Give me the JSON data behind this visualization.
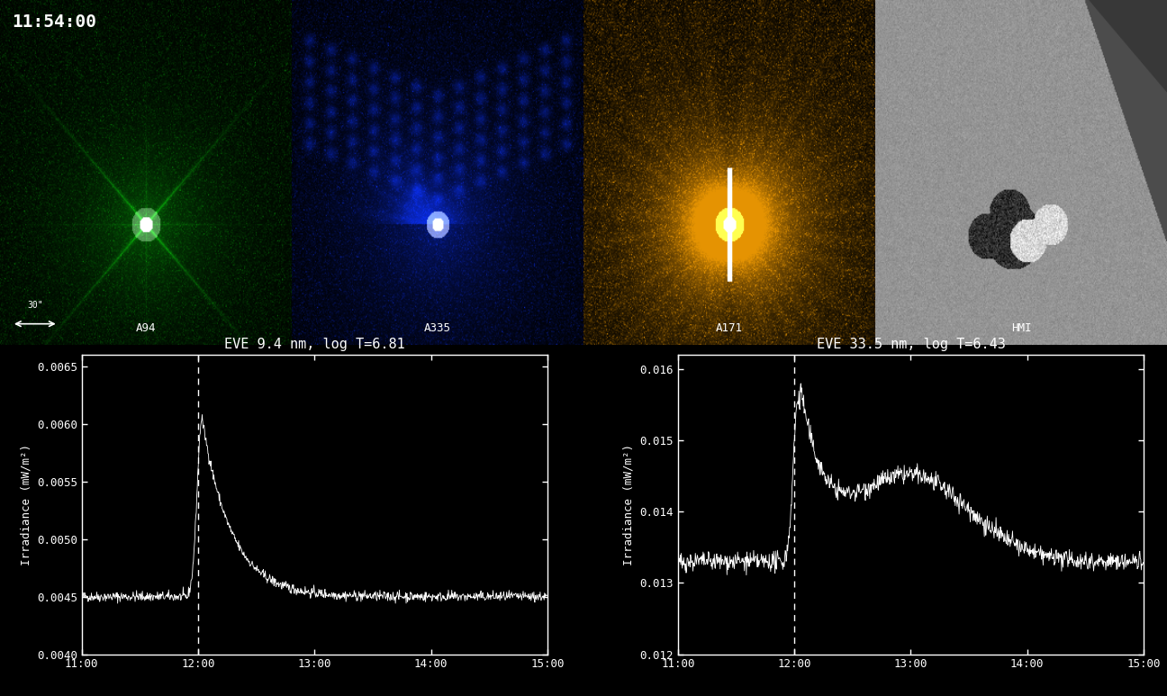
{
  "timestamp": "11:54:00",
  "panel_labels": [
    "A94",
    "A335",
    "A171",
    "HMI"
  ],
  "plot1_title": "EVE 9.4 nm, log T=6.81",
  "plot2_title": "EVE 33.5 nm, log T=6.43",
  "ylabel": "Irradiance (mW/m²)",
  "xlim": [
    0,
    240
  ],
  "xtick_labels": [
    "11:00",
    "12:00",
    "13:00",
    "14:00",
    "15:00"
  ],
  "xtick_positions": [
    0,
    60,
    120,
    180,
    240
  ],
  "plot1_ylim": [
    0.004,
    0.0066
  ],
  "plot1_yticks": [
    0.004,
    0.0045,
    0.005,
    0.0055,
    0.006,
    0.0065
  ],
  "plot2_ylim": [
    0.012,
    0.0162
  ],
  "plot2_yticks": [
    0.012,
    0.013,
    0.014,
    0.015,
    0.016
  ],
  "dashed_line_x": 60,
  "background_color": "#000000",
  "plot_line_color": "#ffffff",
  "scale_bar_label": "30\""
}
